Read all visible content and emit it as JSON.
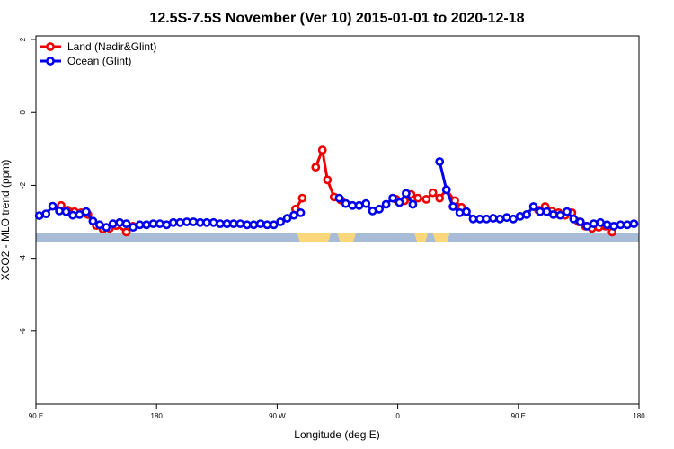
{
  "chart_data": {
    "type": "line",
    "title": "12.5S-7.5S November (Ver 10)   2015-01-01 to 2020-12-18",
    "xlabel": "Longitude (deg E)",
    "ylabel": "XCO2 - MLO trend (ppm)",
    "xlim": [
      90,
      450
    ],
    "ylim": [
      -8,
      2.1
    ],
    "x_ticks": [
      {
        "value": 90,
        "label": "90 E"
      },
      {
        "value": 162,
        "label": "180"
      },
      {
        "value": 234,
        "label": "90 W"
      },
      {
        "value": 306,
        "label": "0"
      },
      {
        "value": 378,
        "label": "90 E"
      },
      {
        "value": 450,
        "label": "180"
      }
    ],
    "y_ticks": [
      {
        "value": 2,
        "label": "2"
      },
      {
        "value": 0,
        "label": "0"
      },
      {
        "value": -2,
        "label": "-2"
      },
      {
        "value": -4,
        "label": "-4"
      },
      {
        "value": -6,
        "label": "-6"
      }
    ],
    "legend": {
      "placement": "top-left"
    },
    "colors": {
      "land": "#ee0000",
      "ocean": "#0000ee",
      "map_ocean": "#a8bcd8",
      "map_land": "#fcd87a"
    },
    "series": [
      {
        "name": "Land (Nadir&Glint)",
        "color": "#ee0000",
        "segments": [
          [
            [
              105,
              -2.55
            ],
            [
              109,
              -2.68
            ],
            [
              113,
              -2.72
            ],
            [
              117,
              -2.75
            ],
            [
              121,
              -2.8
            ],
            [
              126,
              -3.1
            ],
            [
              130,
              -3.2
            ],
            [
              134,
              -3.18
            ],
            [
              138,
              -3.1
            ],
            [
              144,
              -3.28
            ],
            [
              148,
              -3.12
            ]
          ],
          [
            [
              245,
              -2.65
            ],
            [
              249,
              -2.35
            ]
          ],
          [
            [
              257,
              -1.5
            ],
            [
              261,
              -1.03
            ],
            [
              264,
              -1.85
            ],
            [
              268,
              -2.32
            ],
            [
              272,
              -2.4
            ]
          ],
          [
            [
              305,
              -2.38
            ],
            [
              310,
              -2.42
            ],
            [
              314,
              -2.25
            ],
            [
              318,
              -2.35
            ],
            [
              323,
              -2.38
            ],
            [
              327,
              -2.2
            ],
            [
              331,
              -2.35
            ],
            [
              335,
              -2.12
            ],
            [
              340,
              -2.42
            ],
            [
              344,
              -2.6
            ]
          ],
          [
            [
              390,
              -2.68
            ],
            [
              394,
              -2.58
            ],
            [
              398,
              -2.7
            ],
            [
              402,
              -2.75
            ],
            [
              406,
              -2.82
            ],
            [
              410,
              -2.75
            ],
            [
              414,
              -3.0
            ],
            [
              418,
              -3.12
            ],
            [
              422,
              -3.18
            ],
            [
              426,
              -3.15
            ],
            [
              430,
              -3.12
            ],
            [
              434,
              -3.28
            ]
          ]
        ]
      },
      {
        "name": "Ocean (Glint)",
        "color": "#0000ee",
        "segments": [
          [
            [
              92,
              -2.83
            ],
            [
              96,
              -2.78
            ],
            [
              100,
              -2.57
            ],
            [
              104,
              -2.7
            ],
            [
              108,
              -2.72
            ],
            [
              112,
              -2.82
            ],
            [
              116,
              -2.8
            ],
            [
              120,
              -2.72
            ],
            [
              124,
              -2.98
            ],
            [
              128,
              -3.08
            ],
            [
              132,
              -3.15
            ],
            [
              136,
              -3.05
            ],
            [
              140,
              -3.02
            ],
            [
              144,
              -3.05
            ],
            [
              148,
              -3.15
            ],
            [
              152,
              -3.08
            ],
            [
              156,
              -3.08
            ],
            [
              160,
              -3.05
            ],
            [
              164,
              -3.05
            ],
            [
              168,
              -3.08
            ],
            [
              172,
              -3.02
            ],
            [
              176,
              -3.02
            ],
            [
              180,
              -3.0
            ],
            [
              184,
              -3.0
            ],
            [
              188,
              -3.02
            ],
            [
              192,
              -3.02
            ],
            [
              196,
              -3.02
            ],
            [
              200,
              -3.05
            ],
            [
              204,
              -3.05
            ],
            [
              208,
              -3.05
            ],
            [
              212,
              -3.05
            ],
            [
              216,
              -3.08
            ],
            [
              220,
              -3.08
            ],
            [
              224,
              -3.05
            ],
            [
              228,
              -3.08
            ],
            [
              232,
              -3.08
            ],
            [
              236,
              -3.0
            ],
            [
              240,
              -2.9
            ],
            [
              244,
              -2.82
            ],
            [
              248,
              -2.75
            ]
          ],
          [
            [
              271,
              -2.35
            ],
            [
              275,
              -2.5
            ],
            [
              279,
              -2.55
            ],
            [
              283,
              -2.55
            ],
            [
              287,
              -2.5
            ],
            [
              291,
              -2.7
            ],
            [
              295,
              -2.65
            ],
            [
              299,
              -2.52
            ],
            [
              303,
              -2.35
            ],
            [
              307,
              -2.47
            ],
            [
              311,
              -2.22
            ],
            [
              315,
              -2.52
            ]
          ],
          [
            [
              331,
              -1.35
            ],
            [
              335,
              -2.12
            ],
            [
              339,
              -2.58
            ],
            [
              343,
              -2.75
            ],
            [
              347,
              -2.72
            ],
            [
              351,
              -2.92
            ],
            [
              355,
              -2.92
            ],
            [
              359,
              -2.92
            ],
            [
              363,
              -2.9
            ],
            [
              367,
              -2.92
            ],
            [
              371,
              -2.88
            ],
            [
              375,
              -2.92
            ],
            [
              379,
              -2.85
            ],
            [
              383,
              -2.8
            ],
            [
              387,
              -2.58
            ],
            [
              391,
              -2.72
            ],
            [
              395,
              -2.72
            ],
            [
              399,
              -2.8
            ],
            [
              403,
              -2.82
            ],
            [
              407,
              -2.72
            ],
            [
              411,
              -2.92
            ],
            [
              415,
              -3.0
            ],
            [
              419,
              -3.12
            ],
            [
              423,
              -3.05
            ],
            [
              427,
              -3.02
            ],
            [
              431,
              -3.08
            ],
            [
              435,
              -3.12
            ],
            [
              439,
              -3.08
            ],
            [
              443,
              -3.08
            ],
            [
              447,
              -3.05
            ]
          ]
        ]
      }
    ],
    "map_strip": {
      "y_range": [
        -3.32,
        -3.55
      ],
      "land_spans": [
        [
          246,
          266
        ],
        [
          270,
          281
        ],
        [
          316,
          324
        ],
        [
          327,
          337
        ]
      ]
    }
  }
}
